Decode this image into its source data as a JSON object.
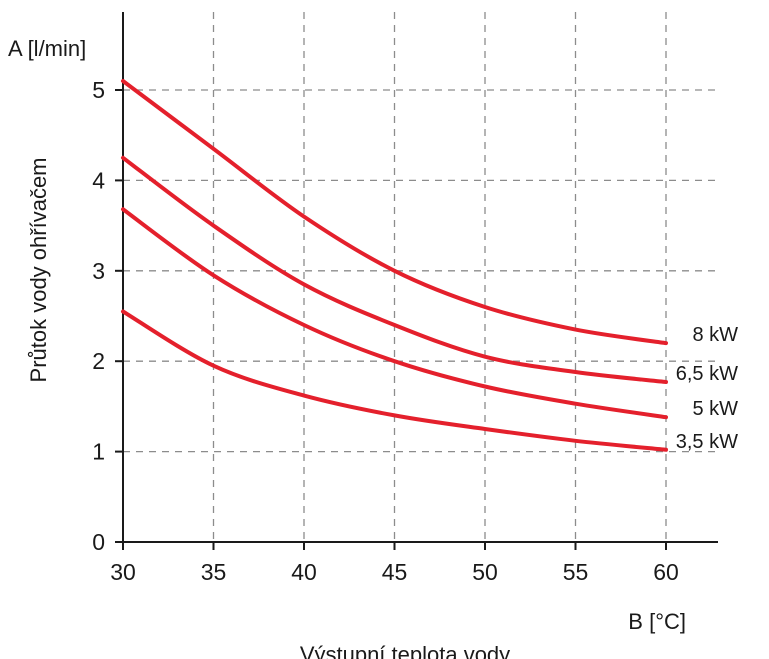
{
  "chart_data": {
    "type": "line",
    "title": "",
    "x_axis": {
      "label": "Výstupní teplota vody",
      "unit_label": "B [°C]",
      "ticks": [
        30,
        35,
        40,
        45,
        50,
        55,
        60
      ],
      "range": [
        30,
        63
      ]
    },
    "y_axis": {
      "label": "Průtok vody ohřívačem",
      "unit_label": "A [l/min]",
      "ticks": [
        0,
        1,
        2,
        3,
        4,
        5
      ],
      "range": [
        0,
        5.9
      ]
    },
    "grid": true,
    "grid_style": "dashed",
    "series": [
      {
        "name": "8 kW",
        "color": "#e4202c",
        "points": [
          [
            30,
            5.1
          ],
          [
            35,
            4.35
          ],
          [
            40,
            3.6
          ],
          [
            45,
            3.0
          ],
          [
            50,
            2.6
          ],
          [
            55,
            2.35
          ],
          [
            60,
            2.2
          ]
        ]
      },
      {
        "name": "6,5 kW",
        "color": "#e4202c",
        "points": [
          [
            30,
            4.25
          ],
          [
            35,
            3.5
          ],
          [
            40,
            2.85
          ],
          [
            45,
            2.4
          ],
          [
            50,
            2.05
          ],
          [
            55,
            1.88
          ],
          [
            60,
            1.77
          ]
        ]
      },
      {
        "name": "5 kW",
        "color": "#e4202c",
        "points": [
          [
            30,
            3.68
          ],
          [
            35,
            2.95
          ],
          [
            40,
            2.4
          ],
          [
            45,
            2.0
          ],
          [
            50,
            1.72
          ],
          [
            55,
            1.53
          ],
          [
            60,
            1.38
          ]
        ]
      },
      {
        "name": "3,5 kW",
        "color": "#e4202c",
        "points": [
          [
            30,
            2.55
          ],
          [
            35,
            1.95
          ],
          [
            40,
            1.62
          ],
          [
            45,
            1.4
          ],
          [
            50,
            1.25
          ],
          [
            55,
            1.12
          ],
          [
            60,
            1.02
          ]
        ]
      }
    ]
  }
}
